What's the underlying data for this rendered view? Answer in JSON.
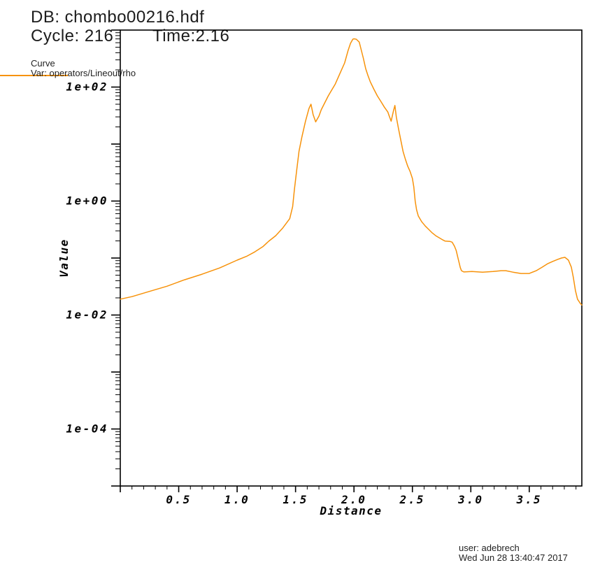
{
  "header": {
    "db_label": "DB: chombo00216.hdf",
    "cycle_label": "Cycle: 216",
    "time_label": "Time:2.16"
  },
  "legend": {
    "plot_type_label": "Curve",
    "var_label": "Var: operators/Lineout/rho",
    "swatch_color": "#f7920a"
  },
  "footer": {
    "user_line": "user: adebrech",
    "date_line": "Wed Jun 28 13:40:47 2017"
  },
  "chart_data": {
    "type": "line",
    "title": "",
    "xlabel": "Distance",
    "ylabel": "Value",
    "x_scale": "linear",
    "y_scale": "log",
    "xlim": [
      0,
      3.95
    ],
    "ylim": [
      1e-05,
      1000
    ],
    "grid": false,
    "legend_position": "top-left-outside",
    "curve_color": "#f7920a",
    "axis_color": "#000000",
    "x_major_ticks": [
      {
        "v": 0.5,
        "label": "0.5"
      },
      {
        "v": 1.0,
        "label": "1.0"
      },
      {
        "v": 1.5,
        "label": "1.5"
      },
      {
        "v": 2.0,
        "label": "2.0"
      },
      {
        "v": 2.5,
        "label": "2.5"
      },
      {
        "v": 3.0,
        "label": "3.0"
      },
      {
        "v": 3.5,
        "label": "3.5"
      }
    ],
    "x_minor_step": 0.1,
    "y_labeled_ticks": [
      {
        "exp": 2,
        "label": "1e+02"
      },
      {
        "exp": 0,
        "label": "1e+00"
      },
      {
        "exp": -2,
        "label": "1e-02"
      },
      {
        "exp": -4,
        "label": "1e-04"
      }
    ],
    "y_major_exps": [
      -5,
      -4,
      -3,
      -2,
      -1,
      0,
      1,
      2,
      3
    ],
    "series": [
      {
        "name": "operators/Lineout/rho",
        "color": "#f7920a",
        "points": [
          [
            0.0,
            0.019
          ],
          [
            0.1,
            0.021
          ],
          [
            0.25,
            0.026
          ],
          [
            0.4,
            0.032
          ],
          [
            0.55,
            0.0415
          ],
          [
            0.7,
            0.052
          ],
          [
            0.85,
            0.067
          ],
          [
            1.0,
            0.092
          ],
          [
            1.08,
            0.107
          ],
          [
            1.15,
            0.128
          ],
          [
            1.22,
            0.158
          ],
          [
            1.27,
            0.197
          ],
          [
            1.33,
            0.246
          ],
          [
            1.39,
            0.336
          ],
          [
            1.45,
            0.49
          ],
          [
            1.475,
            0.8
          ],
          [
            1.49,
            1.6
          ],
          [
            1.51,
            3.5
          ],
          [
            1.53,
            7.5
          ],
          [
            1.555,
            13.5
          ],
          [
            1.585,
            25
          ],
          [
            1.615,
            42
          ],
          [
            1.632,
            50
          ],
          [
            1.65,
            33
          ],
          [
            1.672,
            24.5
          ],
          [
            1.7,
            31
          ],
          [
            1.72,
            40
          ],
          [
            1.75,
            53
          ],
          [
            1.78,
            70
          ],
          [
            1.84,
            113
          ],
          [
            1.88,
            173
          ],
          [
            1.92,
            265
          ],
          [
            1.95,
            440
          ],
          [
            1.97,
            585
          ],
          [
            1.99,
            690
          ],
          [
            2.0,
            702
          ],
          [
            2.02,
            690
          ],
          [
            2.045,
            615
          ],
          [
            2.06,
            466
          ],
          [
            2.08,
            323
          ],
          [
            2.1,
            211
          ],
          [
            2.12,
            159
          ],
          [
            2.14,
            123
          ],
          [
            2.17,
            92
          ],
          [
            2.2,
            70
          ],
          [
            2.23,
            56
          ],
          [
            2.26,
            44.5
          ],
          [
            2.29,
            36.5
          ],
          [
            2.3,
            31.8
          ],
          [
            2.318,
            25.2
          ],
          [
            2.338,
            38.5
          ],
          [
            2.35,
            47.5
          ],
          [
            2.362,
            30
          ],
          [
            2.38,
            19
          ],
          [
            2.4,
            11.9
          ],
          [
            2.42,
            7.4
          ],
          [
            2.44,
            5.4
          ],
          [
            2.46,
            4.1
          ],
          [
            2.48,
            3.3
          ],
          [
            2.5,
            2.5
          ],
          [
            2.512,
            1.78
          ],
          [
            2.524,
            1.0
          ],
          [
            2.536,
            0.7
          ],
          [
            2.55,
            0.55
          ],
          [
            2.58,
            0.432
          ],
          [
            2.61,
            0.365
          ],
          [
            2.64,
            0.318
          ],
          [
            2.67,
            0.276
          ],
          [
            2.7,
            0.246
          ],
          [
            2.73,
            0.226
          ],
          [
            2.76,
            0.208
          ],
          [
            2.78,
            0.198
          ],
          [
            2.82,
            0.196
          ],
          [
            2.84,
            0.19
          ],
          [
            2.86,
            0.161
          ],
          [
            2.875,
            0.135
          ],
          [
            2.89,
            0.1
          ],
          [
            2.9,
            0.082
          ],
          [
            2.91,
            0.068
          ],
          [
            2.92,
            0.06
          ],
          [
            2.94,
            0.057
          ],
          [
            3.01,
            0.058
          ],
          [
            3.1,
            0.0565
          ],
          [
            3.19,
            0.058
          ],
          [
            3.26,
            0.06
          ],
          [
            3.3,
            0.06
          ],
          [
            3.36,
            0.0565
          ],
          [
            3.43,
            0.0535
          ],
          [
            3.5,
            0.0535
          ],
          [
            3.56,
            0.06
          ],
          [
            3.61,
            0.069
          ],
          [
            3.66,
            0.08
          ],
          [
            3.7,
            0.087
          ],
          [
            3.74,
            0.094
          ],
          [
            3.775,
            0.1
          ],
          [
            3.805,
            0.103
          ],
          [
            3.835,
            0.092
          ],
          [
            3.86,
            0.069
          ],
          [
            3.877,
            0.046
          ],
          [
            3.895,
            0.027
          ],
          [
            3.913,
            0.019
          ],
          [
            3.937,
            0.016
          ],
          [
            3.95,
            0.015
          ]
        ]
      }
    ]
  }
}
